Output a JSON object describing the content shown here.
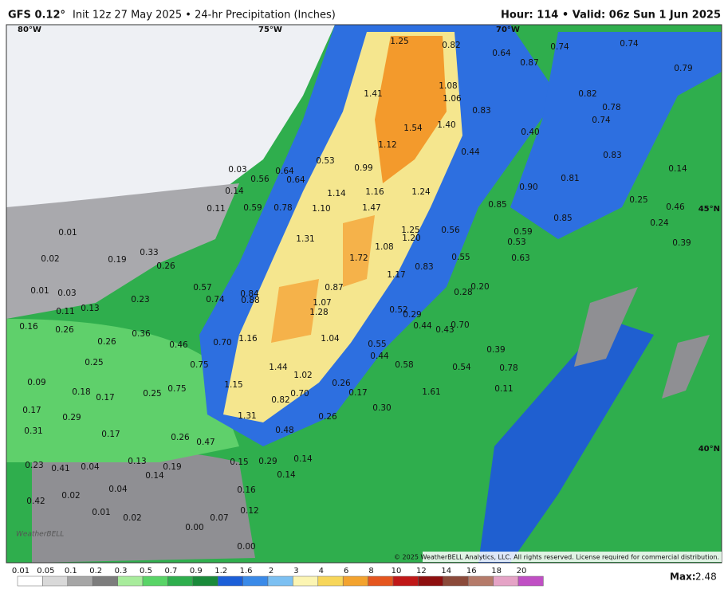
{
  "header": {
    "model": "GFS 0.12°",
    "title": "Init 12z 27 May 2025 • 24-hr Precipitation (Inches)",
    "valid": "Hour: 114 • Valid: 06z Sun 1 Jun 2025"
  },
  "map": {
    "graticule": [
      "80°W",
      "75°W",
      "70°W",
      "45°N",
      "40°N"
    ],
    "values": [
      "1.25",
      "0.82",
      "0.64",
      "0.87",
      "0.74",
      "0.74",
      "0.79",
      "1.41",
      "1.08",
      "1.06",
      "0.82",
      "0.78",
      "0.83",
      "0.74",
      "1.54",
      "1.40",
      "0.40",
      "1.12",
      "0.44",
      "0.83",
      "0.03",
      "0.64",
      "0.53",
      "0.99",
      "0.64",
      "0.56",
      "0.14",
      "1.14",
      "1.16",
      "1.24",
      "0.90",
      "0.81",
      "0.14",
      "0.11",
      "0.59",
      "0.78",
      "1.10",
      "1.47",
      "0.85",
      "0.25",
      "0.46",
      "0.85",
      "0.24",
      "0.01",
      "1.31",
      "1.25",
      "1.20",
      "0.56",
      "0.59",
      "0.53",
      "0.39",
      "0.02",
      "0.19",
      "0.33",
      "0.26",
      "1.72",
      "1.08",
      "0.83",
      "0.55",
      "0.63",
      "0.01",
      "0.03",
      "0.57",
      "0.84",
      "0.88",
      "0.87",
      "1.17",
      "0.20",
      "0.28",
      "0.74",
      "0.23",
      "0.11",
      "0.13",
      "1.07",
      "1.28",
      "0.52",
      "0.29",
      "0.16",
      "0.26",
      "0.36",
      "0.44",
      "0.43",
      "0.70",
      "0.26",
      "0.46",
      "0.70",
      "1.16",
      "1.04",
      "0.55",
      "0.39",
      "0.25",
      "0.44",
      "0.58",
      "0.75",
      "1.44",
      "1.02",
      "0.54",
      "0.78",
      "0.09",
      "1.15",
      "0.26",
      "0.17",
      "0.75",
      "0.18",
      "0.17",
      "0.25",
      "0.70",
      "0.82",
      "1.61",
      "0.11",
      "0.17",
      "0.29",
      "1.31",
      "0.26",
      "0.30",
      "0.31",
      "0.17",
      "0.26",
      "0.47",
      "0.48",
      "0.13",
      "0.29",
      "0.14",
      "0.15",
      "0.23",
      "0.41",
      "0.04",
      "0.19",
      "0.14",
      "0.04",
      "0.14",
      "0.16",
      "0.12",
      "0.02",
      "0.42",
      "0.01",
      "0.02",
      "0.07",
      "0.00",
      "0.00"
    ]
  },
  "colorbar": {
    "ticks": [
      "0.01",
      "0.05",
      "0.1",
      "0.2",
      "0.3",
      "0.5",
      "0.7",
      "0.9",
      "1.2",
      "1.6",
      "2",
      "3",
      "4",
      "6",
      "8",
      "10",
      "12",
      "14",
      "16",
      "18",
      "20"
    ]
  },
  "max": {
    "label": "Max:",
    "value": "2.48"
  },
  "copyright": "© 2025 WeatherBELL Analytics, LLC. All rights reserved. License required for commercial distribution.",
  "logo": "WeatherBELL"
}
